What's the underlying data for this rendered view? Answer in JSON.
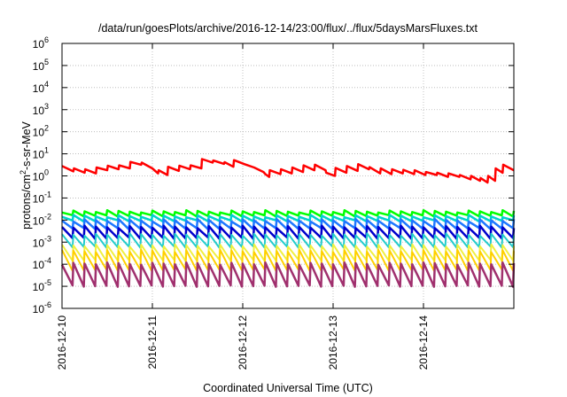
{
  "chart_data": {
    "type": "line",
    "title": "/data/run/goesPlots/archive/2016-12-14/23:00/flux/../flux/5daysMarsFluxes.txt",
    "xlabel": "Coordinated Universal Time (UTC)",
    "ylabel": "protons/cm2-s-sr-MeV",
    "ylabel_parts": {
      "base": "protons/cm",
      "sup": "2",
      "rest": "-s-sr-MeV"
    },
    "y_scale": "log",
    "ylim": [
      1e-06,
      1000000.0
    ],
    "y_ticks": [
      {
        "exp": -6,
        "label": "10",
        "sup": "-6"
      },
      {
        "exp": -5,
        "label": "10",
        "sup": "-5"
      },
      {
        "exp": -4,
        "label": "10",
        "sup": "-4"
      },
      {
        "exp": -3,
        "label": "10",
        "sup": "-3"
      },
      {
        "exp": -2,
        "label": "10",
        "sup": "-2"
      },
      {
        "exp": -1,
        "label": "10",
        "sup": "-1"
      },
      {
        "exp": 0,
        "label": "10",
        "sup": "0"
      },
      {
        "exp": 1,
        "label": "10",
        "sup": "1"
      },
      {
        "exp": 2,
        "label": "10",
        "sup": "2"
      },
      {
        "exp": 3,
        "label": "10",
        "sup": "3"
      },
      {
        "exp": 4,
        "label": "10",
        "sup": "4"
      },
      {
        "exp": 5,
        "label": "10",
        "sup": "5"
      },
      {
        "exp": 6,
        "label": "10",
        "sup": "6"
      }
    ],
    "xlim": [
      "2016-12-10",
      "2016-12-15"
    ],
    "x_ticks": [
      "2016-12-10",
      "2016-12-11",
      "2016-12-12",
      "2016-12-13",
      "2016-12-14"
    ],
    "grid": true,
    "series": [
      {
        "color": "#ff0000",
        "stroke": 2.5,
        "points": [
          [
            "2016-12-10 00:00",
            2.8
          ],
          [
            "2016-12-10 03:00",
            1.6
          ],
          [
            "2016-12-10 03:10",
            2.2
          ],
          [
            "2016-12-10 06:00",
            1.4
          ],
          [
            "2016-12-10 06:10",
            2.0
          ],
          [
            "2016-12-10 09:00",
            1.3
          ],
          [
            "2016-12-10 09:10",
            2.4
          ],
          [
            "2016-12-10 12:00",
            1.8
          ],
          [
            "2016-12-10 12:10",
            2.9
          ],
          [
            "2016-12-10 15:00",
            2.0
          ],
          [
            "2016-12-10 15:10",
            3.0
          ],
          [
            "2016-12-10 18:00",
            2.2
          ],
          [
            "2016-12-10 18:10",
            4.3
          ],
          [
            "2016-12-10 21:00",
            3.2
          ],
          [
            "2016-12-10 21:10",
            4.0
          ],
          [
            "2016-12-10 23:59",
            2.2
          ],
          [
            "2016-12-11 01:30",
            1.3
          ],
          [
            "2016-12-11 01:40",
            1.8
          ],
          [
            "2016-12-11 04:00",
            1.1
          ],
          [
            "2016-12-11 04:10",
            2.6
          ],
          [
            "2016-12-11 07:00",
            1.7
          ],
          [
            "2016-12-11 07:10",
            2.9
          ],
          [
            "2016-12-11 10:00",
            2.0
          ],
          [
            "2016-12-11 10:10",
            3.0
          ],
          [
            "2016-12-11 13:00",
            2.2
          ],
          [
            "2016-12-11 13:10",
            5.8
          ],
          [
            "2016-12-11 16:00",
            4.0
          ],
          [
            "2016-12-11 16:10",
            5.0
          ],
          [
            "2016-12-11 19:00",
            3.5
          ],
          [
            "2016-12-11 19:10",
            4.2
          ],
          [
            "2016-12-11 21:30",
            2.6
          ],
          [
            "2016-12-11 21:40",
            5.2
          ],
          [
            "2016-12-12 00:30",
            3.4
          ],
          [
            "2016-12-12 03:00",
            2.4
          ],
          [
            "2016-12-12 05:30",
            1.5
          ],
          [
            "2016-12-12 06:00",
            1.2
          ],
          [
            "2016-12-12 07:00",
            0.9
          ],
          [
            "2016-12-12 07:10",
            1.8
          ],
          [
            "2016-12-12 10:00",
            1.2
          ],
          [
            "2016-12-12 10:10",
            2.0
          ],
          [
            "2016-12-12 13:00",
            1.3
          ],
          [
            "2016-12-12 13:10",
            2.4
          ],
          [
            "2016-12-12 16:00",
            1.5
          ],
          [
            "2016-12-12 16:10",
            3.0
          ],
          [
            "2016-12-12 19:00",
            1.8
          ],
          [
            "2016-12-12 19:10",
            3.2
          ],
          [
            "2016-12-12 22:00",
            1.8
          ],
          [
            "2016-12-12 22:10",
            1.4
          ],
          [
            "2016-12-13 00:30",
            1.0
          ],
          [
            "2016-12-13 00:40",
            2.3
          ],
          [
            "2016-12-13 03:30",
            1.4
          ],
          [
            "2016-12-13 03:40",
            2.8
          ],
          [
            "2016-12-13 06:30",
            1.7
          ],
          [
            "2016-12-13 06:40",
            3.4
          ],
          [
            "2016-12-13 09:30",
            2.0
          ],
          [
            "2016-12-13 09:40",
            2.5
          ],
          [
            "2016-12-13 12:30",
            1.3
          ],
          [
            "2016-12-13 12:40",
            2.2
          ],
          [
            "2016-12-13 15:30",
            1.2
          ],
          [
            "2016-12-13 15:40",
            2.0
          ],
          [
            "2016-12-13 18:30",
            1.3
          ],
          [
            "2016-12-13 18:40",
            1.9
          ],
          [
            "2016-12-13 21:30",
            1.2
          ],
          [
            "2016-12-13 21:40",
            1.8
          ],
          [
            "2016-12-14 00:30",
            1.1
          ],
          [
            "2016-12-14 00:40",
            1.5
          ],
          [
            "2016-12-14 03:30",
            1.1
          ],
          [
            "2016-12-14 03:40",
            1.4
          ],
          [
            "2016-12-14 06:30",
            0.9
          ],
          [
            "2016-12-14 06:40",
            1.3
          ],
          [
            "2016-12-14 09:30",
            0.9
          ],
          [
            "2016-12-14 09:40",
            1.1
          ],
          [
            "2016-12-14 12:30",
            0.7
          ],
          [
            "2016-12-14 12:40",
            1.0
          ],
          [
            "2016-12-14 15:00",
            0.6
          ],
          [
            "2016-12-14 15:10",
            0.8
          ],
          [
            "2016-12-14 17:00",
            0.5
          ],
          [
            "2016-12-14 17:10",
            1.0
          ],
          [
            "2016-12-14 19:00",
            0.6
          ],
          [
            "2016-12-14 19:10",
            2.2
          ],
          [
            "2016-12-14 21:00",
            1.4
          ],
          [
            "2016-12-14 21:10",
            3.2
          ],
          [
            "2016-12-14 23:59",
            1.8
          ]
        ]
      },
      {
        "color": "#00ff00",
        "stroke": 2.5,
        "high": 0.028,
        "low": 0.0145
      },
      {
        "color": "#00d0d0",
        "stroke": 2.5,
        "high": 0.017,
        "low": 0.0085
      },
      {
        "color": "#1e78ff",
        "stroke": 2.5,
        "high": 0.011,
        "low": 0.0038
      },
      {
        "color": "#0000cc",
        "stroke": 2.5,
        "high": 0.0055,
        "low": 0.0014
      },
      {
        "color": "#22cccc",
        "stroke": 2.0,
        "high": 0.0025,
        "low": 0.00055
      },
      {
        "color": "#f0f040",
        "stroke": 2.0,
        "high": 0.0008,
        "low": 0.00014
      },
      {
        "color": "#ffd000",
        "stroke": 2.0,
        "high": 0.00045,
        "low": 5e-05
      },
      {
        "color": "#a0306e",
        "stroke": 2.5,
        "high": 0.00012,
        "low": 9.5e-06
      }
    ],
    "sawtooth_teeth": 40
  }
}
